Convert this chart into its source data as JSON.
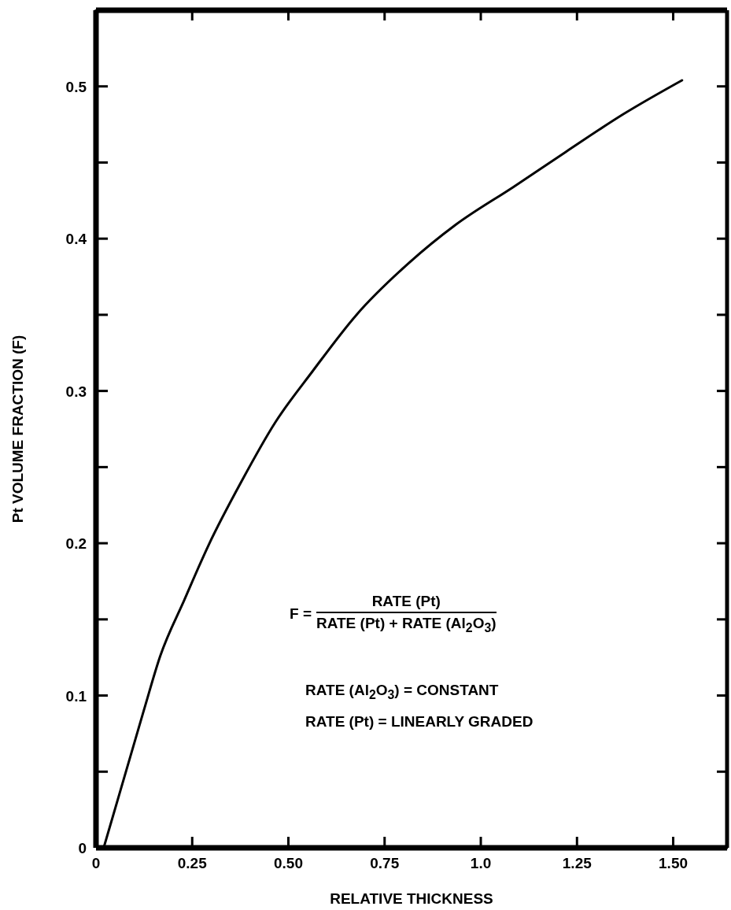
{
  "chart_data": {
    "type": "line",
    "xlabel": "RELATIVE THICKNESS",
    "ylabel": "Pt VOLUME FRACTION (F)",
    "x": [
      0.02,
      0.124,
      0.167,
      0.23,
      0.293,
      0.379,
      0.465,
      0.563,
      0.677,
      0.813,
      0.934,
      1.085,
      1.221,
      1.372,
      1.523
    ],
    "series": [
      {
        "color": "#000000",
        "values": [
          0,
          0.09,
          0.126,
          0.163,
          0.199,
          0.241,
          0.279,
          0.313,
          0.35,
          0.384,
          0.409,
          0.434,
          0.457,
          0.482,
          0.504
        ]
      }
    ],
    "xlim": [
      0,
      1.64
    ],
    "ylim": [
      0,
      0.55
    ],
    "xticks": [
      0,
      0.25,
      {
        "value": 0.5,
        "label": "0.50"
      },
      0.75,
      {
        "value": 1,
        "label": "1.0"
      },
      1.25,
      {
        "value": 1.5,
        "label": "1.50"
      }
    ],
    "yticks": [
      0,
      {
        "value": 0.05,
        "label": null
      },
      0.1,
      {
        "value": 0.15,
        "label": null
      },
      0.2,
      {
        "value": 0.25,
        "label": null
      },
      0.3,
      {
        "value": 0.35,
        "label": null
      },
      0.4,
      {
        "value": 0.45,
        "label": null
      },
      0.5
    ],
    "marker": "none",
    "line_style": "solid",
    "annotations": [
      "F =",
      "RATE (Pt)",
      "RATE (Pt) + RATE (Al$_{2}$O$_{3}$)",
      "RATE (Al$_{2}$O$_{3}$) = CONSTANT",
      "RATE (Pt) = LINEARLY GRADED"
    ]
  }
}
